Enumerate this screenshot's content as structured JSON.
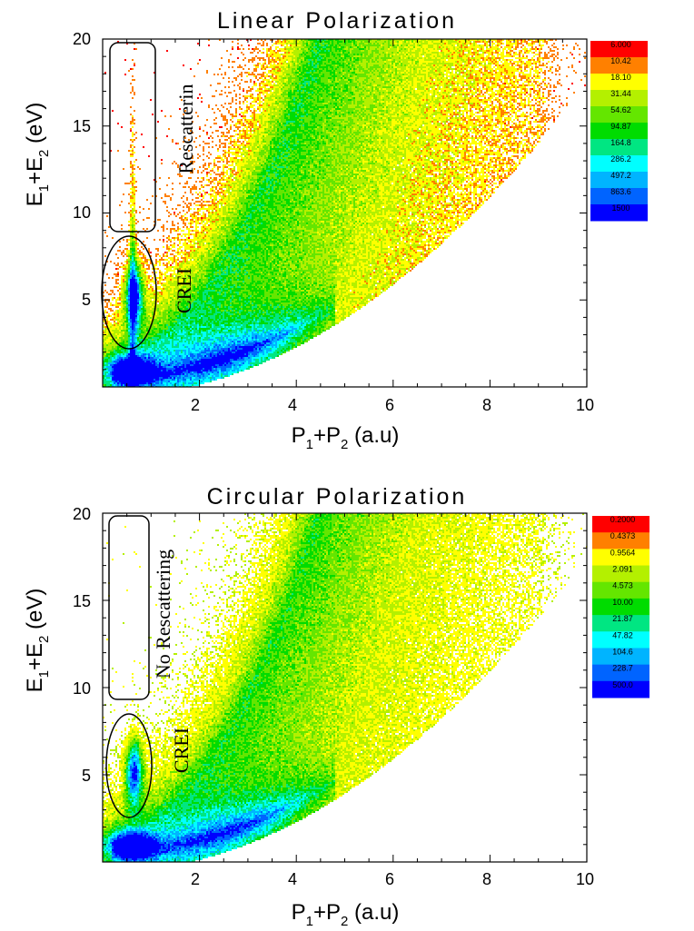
{
  "chart_data": [
    {
      "type": "heatmap",
      "title": "Linear Polarization",
      "xlabel": {
        "P": "P",
        "s1": "1",
        "plus": "+",
        "P2": "P",
        "s2": "2",
        "unit": " (a.u)"
      },
      "ylabel": {
        "E": "E",
        "s1": "1",
        "plus": "+",
        "E2": "E",
        "s2": "2",
        "unit": " (eV)"
      },
      "xlim": [
        0,
        10
      ],
      "ylim": [
        0,
        20
      ],
      "xticks": [
        "2",
        "4",
        "6",
        "8",
        "10"
      ],
      "yticks": [
        "5",
        "10",
        "15",
        "20"
      ],
      "colorbar": [
        "6.000",
        "10.42",
        "18.10",
        "31.44",
        "54.62",
        "94.87",
        "164.8",
        "286.2",
        "497.2",
        "863.6",
        "1500"
      ],
      "annotations": [
        "Rescatterin",
        "CREI"
      ],
      "features": {
        "spike": true
      }
    },
    {
      "type": "heatmap",
      "title": "Circular Polarization",
      "xlabel": {
        "P": "P",
        "s1": "1",
        "plus": "+",
        "P2": "P",
        "s2": "2",
        "unit": " (a.u)"
      },
      "ylabel": {
        "E": "E",
        "s1": "1",
        "plus": "+",
        "E2": "E",
        "s2": "2",
        "unit": " (eV)"
      },
      "xlim": [
        0,
        10
      ],
      "ylim": [
        0,
        20
      ],
      "xticks": [
        "2",
        "4",
        "6",
        "8",
        "10"
      ],
      "yticks": [
        "5",
        "10",
        "15",
        "20"
      ],
      "colorbar": [
        "0.2000",
        "0.4373",
        "0.9564",
        "2.091",
        "4.573",
        "10.00",
        "21.87",
        "47.82",
        "104.6",
        "228.7",
        "500.0"
      ],
      "annotations": [
        "No Rescattering",
        "CREI"
      ],
      "features": {
        "spike": false
      }
    }
  ],
  "colors": {
    "scale": [
      "#ff0000",
      "#ff8000",
      "#ffff00",
      "#b4f000",
      "#64e600",
      "#00dc00",
      "#00e682",
      "#00ffff",
      "#00b4ff",
      "#0064ff",
      "#0000ff"
    ],
    "frame": "#000000",
    "background": "#ffffff"
  }
}
